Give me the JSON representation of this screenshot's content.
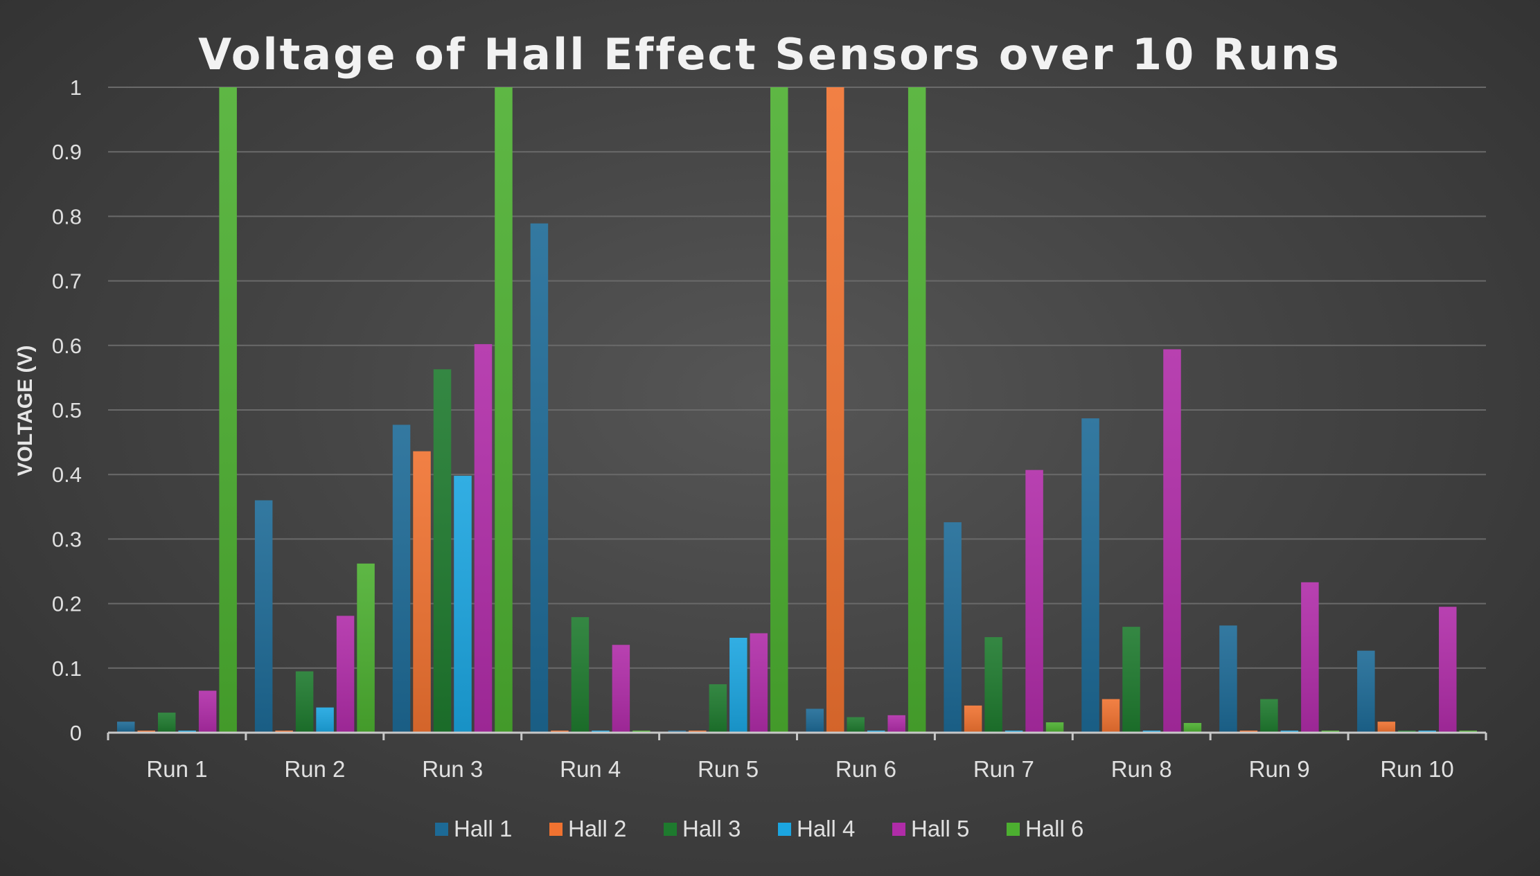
{
  "chart_data": {
    "type": "bar",
    "title": "Voltage of Hall Effect Sensors over 10 Runs",
    "xlabel": "",
    "ylabel": "VOLTAGE (V)",
    "ylim": [
      0,
      1
    ],
    "yticks": [
      "0",
      "0.1",
      "0.2",
      "0.3",
      "0.4",
      "0.5",
      "0.6",
      "0.7",
      "0.8",
      "0.9",
      "1"
    ],
    "grid": true,
    "legend_position": "bottom",
    "categories": [
      "Run 1",
      "Run 2",
      "Run 3",
      "Run 4",
      "Run 5",
      "Run 6",
      "Run 7",
      "Run 8",
      "Run 9",
      "Run 10"
    ],
    "series": [
      {
        "name": "Hall 1",
        "color": "#1d6a96",
        "values": [
          0.017,
          0.36,
          0.477,
          0.789,
          0.0,
          0.037,
          0.326,
          0.487,
          0.166,
          0.127
        ]
      },
      {
        "name": "Hall 2",
        "color": "#f07230",
        "values": [
          0.0,
          0.0,
          0.436,
          0.0,
          0.0,
          1.0,
          0.042,
          0.052,
          0.0,
          0.017
        ]
      },
      {
        "name": "Hall 3",
        "color": "#1e7a2e",
        "values": [
          0.031,
          0.095,
          0.563,
          0.179,
          0.075,
          0.024,
          0.148,
          0.164,
          0.052,
          0.003
        ]
      },
      {
        "name": "Hall 4",
        "color": "#1ba5e0",
        "values": [
          0.0,
          0.039,
          0.398,
          0.0,
          0.147,
          0.0,
          0.0,
          0.0,
          0.0,
          0.0
        ]
      },
      {
        "name": "Hall 5",
        "color": "#b02ca8",
        "values": [
          0.065,
          0.181,
          0.602,
          0.136,
          0.154,
          0.027,
          0.407,
          0.594,
          0.233,
          0.195
        ]
      },
      {
        "name": "Hall 6",
        "color": "#4caf30",
        "values": [
          1.0,
          0.262,
          1.0,
          0.0,
          1.0,
          1.0,
          0.016,
          0.015,
          0.0,
          0.0
        ]
      }
    ]
  }
}
